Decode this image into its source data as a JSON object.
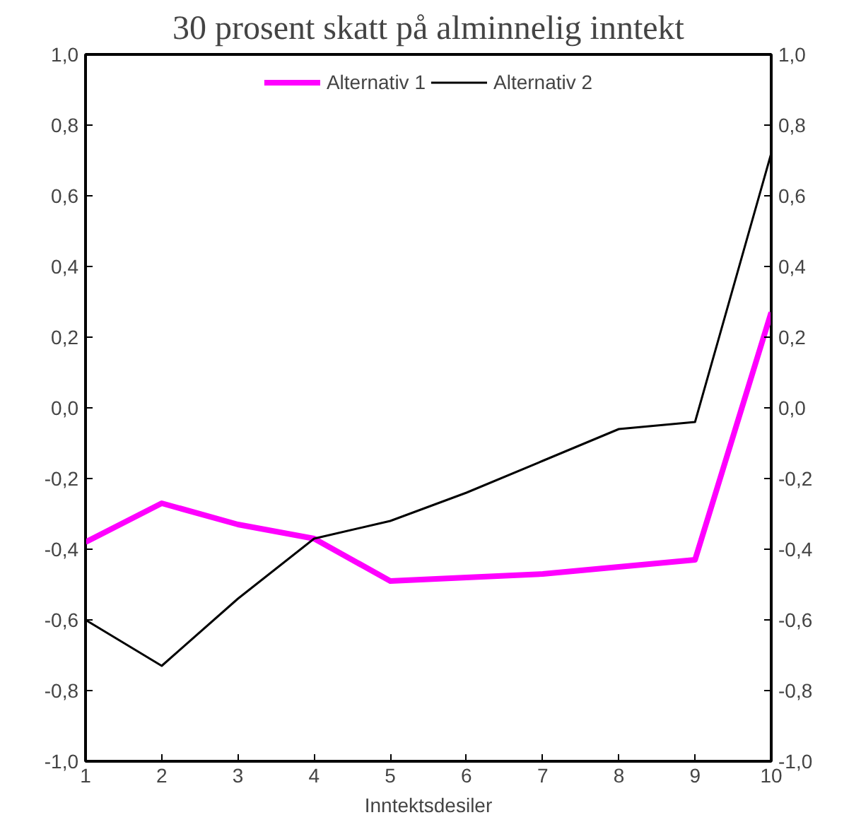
{
  "chart_data": {
    "type": "line",
    "title": "30 prosent skatt på alminnelig inntekt",
    "xlabel": "Inntektsdesiler",
    "x": [
      1,
      2,
      3,
      4,
      5,
      6,
      7,
      8,
      9,
      10
    ],
    "series": [
      {
        "name": "Alternativ 1",
        "color": "#ff00ff",
        "values": [
          -0.38,
          -0.27,
          -0.33,
          -0.37,
          -0.49,
          -0.48,
          -0.47,
          -0.45,
          -0.43,
          0.27
        ]
      },
      {
        "name": "Alternativ 2",
        "color": "#000000",
        "values": [
          -0.6,
          -0.73,
          -0.54,
          -0.37,
          -0.32,
          -0.24,
          -0.15,
          -0.06,
          -0.04,
          0.72
        ]
      }
    ],
    "xlim": [
      1,
      10
    ],
    "xticks": [
      1,
      2,
      3,
      4,
      5,
      6,
      7,
      8,
      9,
      10
    ],
    "ylim": [
      -1.0,
      1.0
    ],
    "yticks": [
      {
        "value": -1.0,
        "label": "-1,0"
      },
      {
        "value": -0.8,
        "label": "-0,8"
      },
      {
        "value": -0.6,
        "label": "-0,6"
      },
      {
        "value": -0.4,
        "label": "-0,4"
      },
      {
        "value": -0.2,
        "label": "-0,2"
      },
      {
        "value": 0.0,
        "label": "0,0"
      },
      {
        "value": 0.2,
        "label": "0,2"
      },
      {
        "value": 0.4,
        "label": "0,4"
      },
      {
        "value": 0.6,
        "label": "0,6"
      },
      {
        "value": 0.8,
        "label": "0,8"
      },
      {
        "value": 1.0,
        "label": "1,0"
      }
    ],
    "y2lim": [
      -1.0,
      1.0
    ],
    "y2ticks": [
      {
        "value": -1.0,
        "label": "-1,0"
      },
      {
        "value": -0.8,
        "label": "-0,8"
      },
      {
        "value": -0.6,
        "label": "-0,6"
      },
      {
        "value": -0.4,
        "label": "-0,4"
      },
      {
        "value": -0.2,
        "label": "-0,2"
      },
      {
        "value": 0.0,
        "label": "0,0"
      },
      {
        "value": 0.2,
        "label": "0,2"
      },
      {
        "value": 0.4,
        "label": "0,4"
      },
      {
        "value": 0.6,
        "label": "0,6"
      },
      {
        "value": 0.8,
        "label": "0,8"
      },
      {
        "value": 1.0,
        "label": "1,0"
      }
    ],
    "grid": false,
    "legend": "top",
    "marker": "none",
    "line_style": "solid"
  }
}
